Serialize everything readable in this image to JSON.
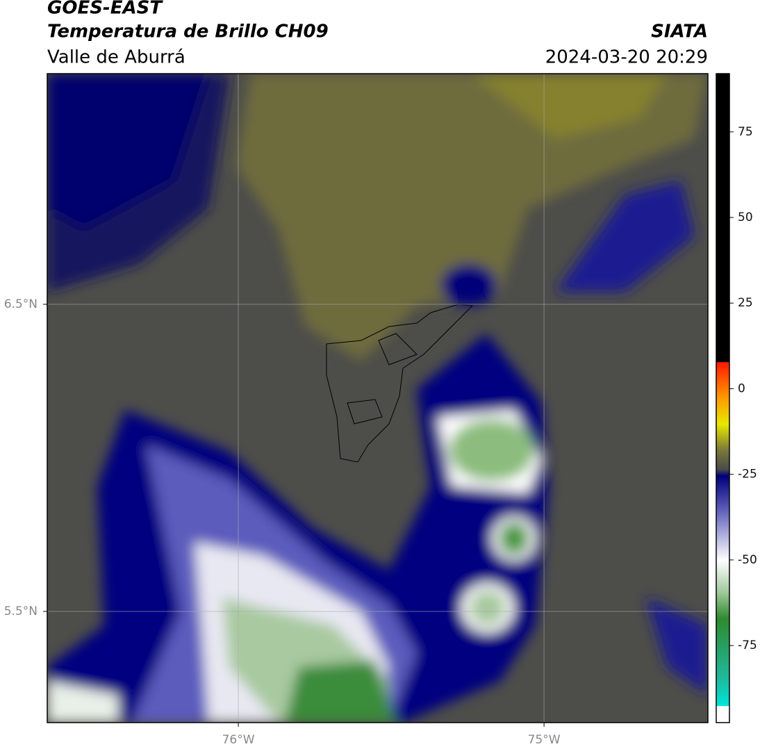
{
  "header": {
    "title": "GOES-EAST",
    "subtitle": "Temperatura de Brillo CH09",
    "region": "Valle de Aburrá",
    "source": "SIATA",
    "datetime": "2024-03-20 20:29"
  },
  "map": {
    "xlim": [
      -76.625,
      -74.464
    ],
    "ylim": [
      5.138,
      7.251
    ],
    "xticks": [
      {
        "value": -76,
        "label": "76°W"
      },
      {
        "value": -75,
        "label": "75°W"
      }
    ],
    "yticks": [
      {
        "value": 6.5,
        "label": "6.5°N"
      },
      {
        "value": 5.5,
        "label": "5.5°N"
      }
    ],
    "grid": true
  },
  "colorbar": {
    "lim": [
      -97.5,
      92
    ],
    "ticks": [
      75,
      50,
      25,
      0,
      -25,
      -50,
      -75
    ]
  }
}
